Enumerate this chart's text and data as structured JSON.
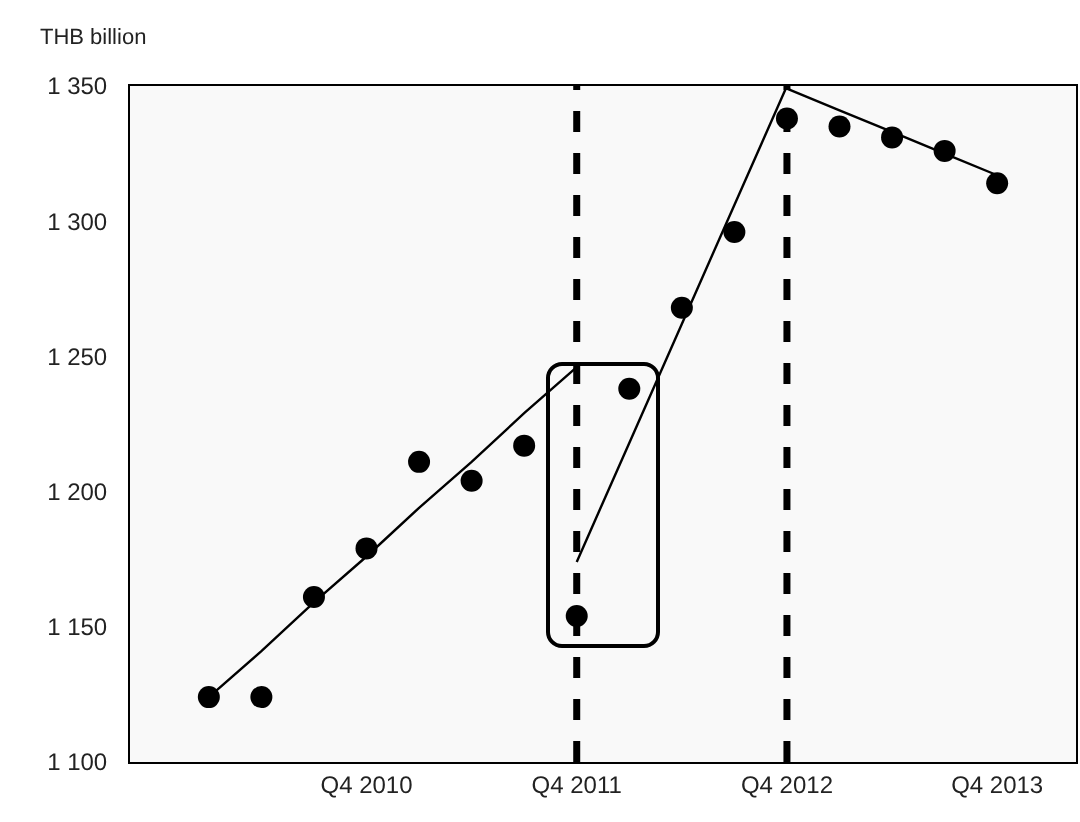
{
  "chart_data": {
    "type": "scatter",
    "ylabel": "THB billion",
    "categories": [
      null,
      null,
      null,
      null,
      "Q4 2010",
      null,
      null,
      null,
      "Q4 2011",
      null,
      null,
      null,
      "Q4 2012",
      null,
      null,
      null,
      "Q4 2013",
      null
    ],
    "series": [
      {
        "color": "#000000",
        "marker": "circle",
        "values": [
          null,
          1124,
          1124,
          1161,
          1179,
          1211,
          1204,
          1217,
          1154,
          1238,
          1268,
          1296,
          1338,
          1335,
          1331,
          1326,
          1314,
          null
        ]
      },
      {
        "type": "line",
        "color": "#000000",
        "line_style": "solid",
        "values": [
          null,
          1124,
          1141,
          1159,
          1176,
          1194,
          1211,
          1229,
          1246,
          null,
          null,
          null,
          null,
          null,
          null,
          null,
          null,
          null
        ]
      },
      {
        "type": "line",
        "color": "#000000",
        "line_style": "solid",
        "values": [
          null,
          null,
          null,
          null,
          null,
          null,
          null,
          null,
          1174,
          1218,
          1262,
          1306,
          1350,
          null,
          null,
          null,
          null,
          null
        ]
      },
      {
        "type": "line",
        "color": "#000000",
        "line_style": "solid",
        "values": [
          null,
          null,
          null,
          null,
          null,
          null,
          null,
          null,
          null,
          null,
          null,
          null,
          1349,
          1341,
          1333,
          1325,
          1317,
          null
        ]
      }
    ],
    "ylim": [
      1100,
      1350
    ],
    "yticks": [
      {
        "value": 1100,
        "label": "1 100"
      },
      {
        "value": 1150,
        "label": "1 150"
      },
      {
        "value": 1200,
        "label": "1 200"
      },
      {
        "value": 1250,
        "label": "1 250"
      },
      {
        "value": 1300,
        "label": "1 300"
      },
      {
        "value": 1350,
        "label": "1 350"
      }
    ],
    "ref_lines": [
      {
        "axis": "x",
        "value": "Q4 2011",
        "color": "#000000",
        "line_style": "dashed"
      },
      {
        "axis": "x",
        "value": "Q4 2012",
        "color": "#000000",
        "line_style": "dashed"
      }
    ],
    "grid": false
  }
}
